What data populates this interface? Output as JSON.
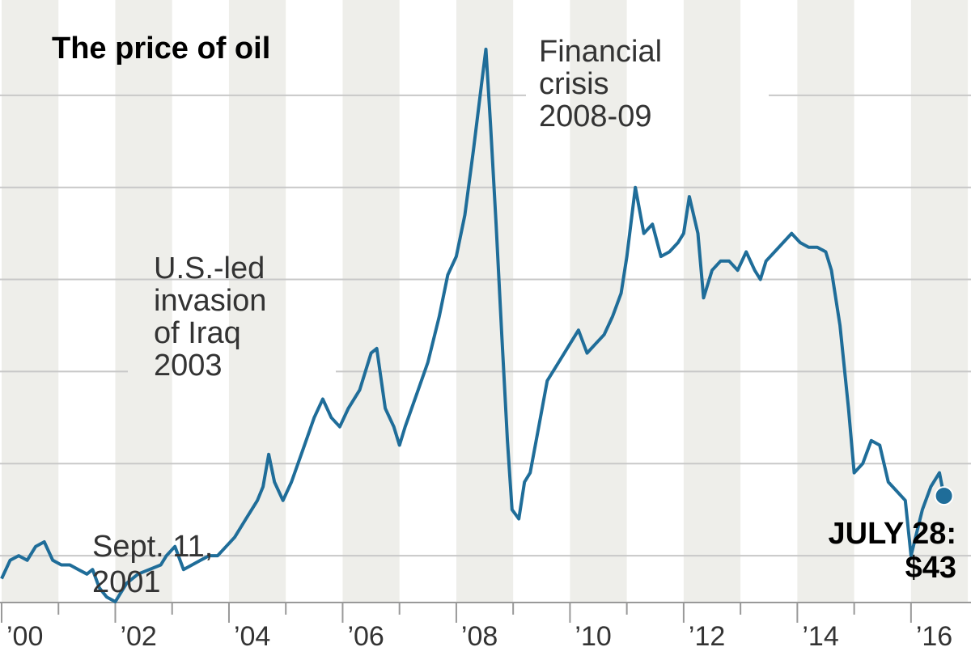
{
  "chart_data": {
    "type": "line",
    "title": "The price of oil",
    "xlabel": "",
    "ylabel": "",
    "x_range": [
      2000.0,
      2016.6
    ],
    "y_range": [
      20,
      150
    ],
    "grid": true,
    "legend": "none",
    "x_ticks": [
      {
        "value": 2000,
        "label": "’00"
      },
      {
        "value": 2002,
        "label": "’02"
      },
      {
        "value": 2004,
        "label": "’04"
      },
      {
        "value": 2006,
        "label": "’06"
      },
      {
        "value": 2008,
        "label": "’08"
      },
      {
        "value": 2010,
        "label": "’10"
      },
      {
        "value": 2012,
        "label": "’12"
      },
      {
        "value": 2014,
        "label": "’14"
      },
      {
        "value": 2016,
        "label": "’16"
      }
    ],
    "y_gridlines": [
      30,
      50,
      70,
      90,
      110,
      130
    ],
    "colors": {
      "line": "#1f6d99",
      "band": "#eeeeea",
      "grid": "#c8c8c8",
      "axis": "#999999"
    },
    "series": [
      {
        "name": "",
        "x": [
          2000.0,
          2000.15,
          2000.3,
          2000.45,
          2000.6,
          2000.75,
          2000.9,
          2001.05,
          2001.2,
          2001.35,
          2001.5,
          2001.6,
          2001.72,
          2001.85,
          2002.0,
          2002.2,
          2002.4,
          2002.6,
          2002.8,
          2002.9,
          2003.05,
          2003.2,
          2003.35,
          2003.5,
          2003.65,
          2003.8,
          2003.95,
          2004.1,
          2004.3,
          2004.5,
          2004.6,
          2004.7,
          2004.8,
          2004.95,
          2005.1,
          2005.3,
          2005.5,
          2005.65,
          2005.8,
          2005.95,
          2006.1,
          2006.3,
          2006.5,
          2006.6,
          2006.75,
          2006.9,
          2007.0,
          2007.1,
          2007.3,
          2007.5,
          2007.7,
          2007.85,
          2008.0,
          2008.15,
          2008.3,
          2008.45,
          2008.52,
          2008.6,
          2008.7,
          2008.8,
          2008.9,
          2008.98,
          2009.1,
          2009.2,
          2009.3,
          2009.45,
          2009.6,
          2009.8,
          2010.0,
          2010.15,
          2010.3,
          2010.45,
          2010.6,
          2010.75,
          2010.9,
          2011.0,
          2011.15,
          2011.3,
          2011.45,
          2011.6,
          2011.75,
          2011.9,
          2012.0,
          2012.1,
          2012.25,
          2012.35,
          2012.5,
          2012.65,
          2012.8,
          2012.95,
          2013.1,
          2013.25,
          2013.35,
          2013.45,
          2013.6,
          2013.75,
          2013.9,
          2014.05,
          2014.2,
          2014.35,
          2014.5,
          2014.6,
          2014.75,
          2014.9,
          2015.0,
          2015.15,
          2015.3,
          2015.45,
          2015.6,
          2015.75,
          2015.9,
          2016.0,
          2016.08,
          2016.2,
          2016.35,
          2016.5,
          2016.58
        ],
        "values": [
          25,
          29,
          30,
          29,
          32,
          33,
          29,
          28,
          28,
          27,
          26,
          27,
          23,
          21,
          20,
          24,
          26,
          27,
          28,
          30,
          32,
          27,
          28,
          29,
          30,
          30,
          32,
          34,
          38,
          42,
          45,
          52,
          46,
          42,
          46,
          53,
          60,
          64,
          60,
          58,
          62,
          66,
          74,
          75,
          62,
          58,
          54,
          58,
          65,
          72,
          82,
          91,
          95,
          104,
          118,
          133,
          140,
          124,
          102,
          78,
          55,
          40,
          38,
          46,
          48,
          58,
          68,
          72,
          76,
          79,
          74,
          76,
          78,
          82,
          87,
          95,
          110,
          100,
          102,
          95,
          96,
          98,
          100,
          108,
          100,
          86,
          92,
          94,
          94,
          92,
          96,
          92,
          90,
          94,
          96,
          98,
          100,
          98,
          97,
          97,
          96,
          92,
          80,
          62,
          48,
          50,
          55,
          54,
          46,
          44,
          42,
          30,
          34,
          40,
          45,
          48,
          43
        ]
      }
    ],
    "annotations": [
      {
        "id": "sept-11",
        "x": 2001.72,
        "lines": [
          "Sept. 11,",
          "2001"
        ]
      },
      {
        "id": "iraq-invasion",
        "x": 2003.2,
        "lines": [
          "U.S.-led",
          "invasion",
          "of Iraq",
          "2003"
        ]
      },
      {
        "id": "financial-crisis",
        "x": 2008.52,
        "lines": [
          "Financial",
          "crisis",
          "2008-09"
        ]
      }
    ],
    "last_point": {
      "x": 2016.58,
      "value": 43,
      "label_lines": [
        "JULY 28:",
        "$43"
      ]
    }
  }
}
